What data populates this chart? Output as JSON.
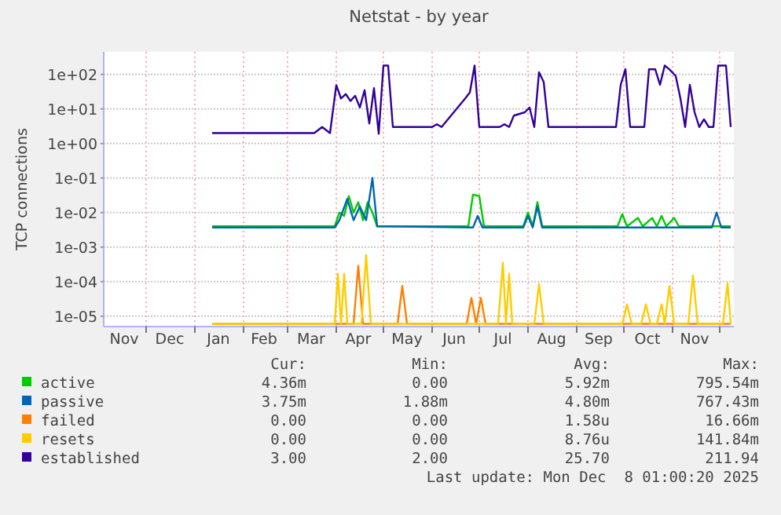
{
  "chart_data": {
    "type": "line",
    "title": "Netstat - by year",
    "ylabel": "TCP connections",
    "log": "y",
    "grid": "xy",
    "legend": "bottom",
    "marker": "none",
    "line_style": "solid",
    "xlim": [
      "2024-11-04",
      "2025-12-10"
    ],
    "xticks": [
      {
        "value": "2024-12-01",
        "label": null
      },
      {
        "value": "2025-01-01",
        "label": null
      },
      {
        "value": "2025-02-01",
        "label": null
      },
      {
        "value": "2025-03-01",
        "label": null
      },
      {
        "value": "2025-04-01",
        "label": null
      },
      {
        "value": "2025-05-01",
        "label": null
      },
      {
        "value": "2025-06-01",
        "label": null
      },
      {
        "value": "2025-07-01",
        "label": null
      },
      {
        "value": "2025-08-01",
        "label": null
      },
      {
        "value": "2025-09-01",
        "label": null
      },
      {
        "value": "2025-10-01",
        "label": null
      },
      {
        "value": "2025-11-01",
        "label": null
      },
      {
        "value": "2025-12-01",
        "label": null
      },
      {
        "value": "2024-11-17",
        "label": "Nov"
      },
      {
        "value": "2024-12-16",
        "label": "Dec"
      },
      {
        "value": "2025-01-16",
        "label": "Jan"
      },
      {
        "value": "2025-02-14",
        "label": "Feb"
      },
      {
        "value": "2025-03-16",
        "label": "Mar"
      },
      {
        "value": "2025-04-15",
        "label": "Apr"
      },
      {
        "value": "2025-05-16",
        "label": "May"
      },
      {
        "value": "2025-06-15",
        "label": "Jun"
      },
      {
        "value": "2025-07-16",
        "label": "Jul"
      },
      {
        "value": "2025-08-16",
        "label": "Aug"
      },
      {
        "value": "2025-09-15",
        "label": "Sep"
      },
      {
        "value": "2025-10-16",
        "label": "Oct"
      },
      {
        "value": "2025-11-15",
        "label": "Nov"
      }
    ],
    "ylim": [
      5e-06,
      450
    ],
    "yticks": [
      {
        "value": 1e-05,
        "label": "1e-05"
      },
      {
        "value": 0.0001,
        "label": "1e-04"
      },
      {
        "value": 0.001,
        "label": "1e-03"
      },
      {
        "value": 0.01,
        "label": "1e-02"
      },
      {
        "value": 0.1,
        "label": "1e-01"
      },
      {
        "value": 1,
        "label": "1e+00"
      },
      {
        "value": 10,
        "label": "1e+01"
      },
      {
        "value": 100,
        "label": "1e+02"
      }
    ],
    "series": [
      {
        "name": "active",
        "color": "#00cc00",
        "x": [
          "2025-01-12",
          "2025-03-31",
          "2025-04-03",
          "2025-04-06",
          "2025-04-09",
          "2025-04-12",
          "2025-04-15",
          "2025-04-18",
          "2025-04-21",
          "2025-04-24",
          "2025-04-27",
          "2025-06-24",
          "2025-06-27",
          "2025-07-01",
          "2025-07-04",
          "2025-07-29",
          "2025-08-01",
          "2025-08-04",
          "2025-08-07",
          "2025-08-10",
          "2025-09-27",
          "2025-09-30",
          "2025-10-03",
          "2025-10-10",
          "2025-10-13",
          "2025-10-19",
          "2025-10-22",
          "2025-10-25",
          "2025-10-28",
          "2025-11-02",
          "2025-11-05",
          "2025-12-08"
        ],
        "values": [
          0.004,
          0.004,
          0.01,
          0.008,
          0.03,
          0.01,
          0.02,
          0.006,
          0.02,
          0.01,
          0.004,
          0.004,
          0.033,
          0.03,
          0.004,
          0.004,
          0.01,
          0.004,
          0.02,
          0.004,
          0.004,
          0.009,
          0.004,
          0.007,
          0.004,
          0.007,
          0.004,
          0.008,
          0.004,
          0.007,
          0.004,
          0.004
        ]
      },
      {
        "name": "passive",
        "color": "#0066b3",
        "x": [
          "2025-01-12",
          "2025-03-31",
          "2025-04-03",
          "2025-04-08",
          "2025-04-12",
          "2025-04-16",
          "2025-04-20",
          "2025-04-24",
          "2025-04-27",
          "2025-06-27",
          "2025-06-30",
          "2025-07-03",
          "2025-07-29",
          "2025-08-01",
          "2025-08-04",
          "2025-08-07",
          "2025-08-10",
          "2025-11-26",
          "2025-11-29",
          "2025-12-02",
          "2025-12-08"
        ],
        "values": [
          0.0037,
          0.0037,
          0.006,
          0.025,
          0.006,
          0.015,
          0.006,
          0.1,
          0.004,
          0.0037,
          0.008,
          0.0037,
          0.0037,
          0.008,
          0.0037,
          0.015,
          0.0037,
          0.0037,
          0.01,
          0.0037,
          0.0037
        ]
      },
      {
        "name": "failed",
        "color": "#ff8000",
        "x": [
          "2025-01-12",
          "2025-04-12",
          "2025-04-15",
          "2025-04-18",
          "2025-05-10",
          "2025-05-13",
          "2025-05-16",
          "2025-06-23",
          "2025-06-26",
          "2025-06-29",
          "2025-07-02",
          "2025-07-05",
          "2025-12-08"
        ],
        "values": [
          6e-06,
          6e-06,
          0.00029,
          6e-06,
          6e-06,
          7.5e-05,
          6e-06,
          6e-06,
          3.4e-05,
          6e-06,
          3.4e-05,
          6e-06,
          6e-06
        ]
      },
      {
        "name": "resets",
        "color": "#ffcc00",
        "x": [
          "2025-01-12",
          "2025-03-31",
          "2025-04-02",
          "2025-04-04",
          "2025-04-06",
          "2025-04-08",
          "2025-04-17",
          "2025-04-20",
          "2025-04-23",
          "2025-07-13",
          "2025-07-16",
          "2025-07-18",
          "2025-07-20",
          "2025-07-22",
          "2025-08-05",
          "2025-08-08",
          "2025-08-11",
          "2025-09-30",
          "2025-10-03",
          "2025-10-06",
          "2025-10-12",
          "2025-10-15",
          "2025-10-18",
          "2025-10-22",
          "2025-10-25",
          "2025-10-27",
          "2025-10-30",
          "2025-11-02",
          "2025-11-11",
          "2025-11-14",
          "2025-11-17",
          "2025-12-03",
          "2025-12-06",
          "2025-12-08"
        ],
        "values": [
          6e-06,
          6e-06,
          0.00017,
          6e-06,
          0.00017,
          6e-06,
          6e-06,
          0.00059,
          6e-06,
          6e-06,
          0.00035,
          6e-06,
          0.00017,
          6e-06,
          6e-06,
          8.6e-05,
          6e-06,
          6e-06,
          2.2e-05,
          6e-06,
          6e-06,
          2.2e-05,
          6e-06,
          6e-06,
          2.2e-05,
          6e-06,
          7.5e-05,
          6e-06,
          6e-06,
          0.00015,
          6e-06,
          6e-06,
          9e-05,
          6e-06
        ]
      },
      {
        "name": "established",
        "color": "#330099",
        "x": [
          "2025-01-12",
          "2025-03-18",
          "2025-03-23",
          "2025-03-28",
          "2025-04-01",
          "2025-04-04",
          "2025-04-07",
          "2025-04-10",
          "2025-04-13",
          "2025-04-16",
          "2025-04-19",
          "2025-04-22",
          "2025-04-25",
          "2025-04-28",
          "2025-05-01",
          "2025-05-04",
          "2025-05-07",
          "2025-06-01",
          "2025-06-04",
          "2025-06-07",
          "2025-06-22",
          "2025-06-25",
          "2025-06-28",
          "2025-07-01",
          "2025-07-14",
          "2025-07-17",
          "2025-07-20",
          "2025-07-23",
          "2025-07-30",
          "2025-08-02",
          "2025-08-05",
          "2025-08-08",
          "2025-08-11",
          "2025-08-14",
          "2025-09-26",
          "2025-09-29",
          "2025-10-02",
          "2025-10-05",
          "2025-10-14",
          "2025-10-17",
          "2025-10-21",
          "2025-10-24",
          "2025-10-27",
          "2025-10-30",
          "2025-11-03",
          "2025-11-06",
          "2025-11-09",
          "2025-11-12",
          "2025-11-15",
          "2025-11-18",
          "2025-11-21",
          "2025-11-24",
          "2025-11-27",
          "2025-11-30",
          "2025-12-05",
          "2025-12-08"
        ],
        "values": [
          2,
          2,
          3,
          2,
          49,
          20,
          27,
          17,
          24,
          11,
          35,
          3.8,
          40,
          1.9,
          180,
          180,
          3,
          3,
          3.6,
          3,
          20,
          30,
          180,
          3,
          3,
          3.6,
          3,
          6.4,
          8,
          11,
          3,
          115,
          60,
          3,
          3,
          50,
          142,
          3,
          3,
          140,
          140,
          50,
          180,
          140,
          90,
          20,
          3,
          50,
          8,
          3,
          5,
          3,
          3,
          180,
          180,
          3
        ]
      }
    ],
    "annotations": [
      "Cur:",
      "Min:",
      "Avg:",
      "Max:",
      "4.36m",
      "0.00",
      "5.92m",
      "795.54m",
      "3.75m",
      "1.88m",
      "4.80m",
      "767.43m",
      "0.00",
      "0.00",
      "1.58u",
      "16.66m",
      "0.00",
      "0.00",
      "8.76u",
      "141.84m",
      "3.00",
      "2.00",
      "25.70",
      "211.94",
      "Last update: Mon Dec  8 01:00:20 2025"
    ]
  }
}
